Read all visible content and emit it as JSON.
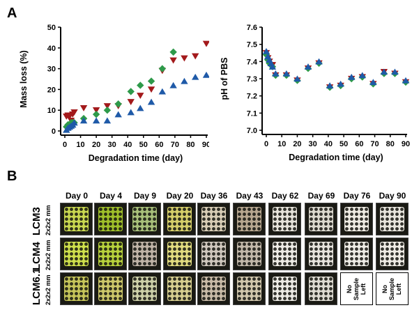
{
  "panels": {
    "a_label": "A",
    "b_label": "B"
  },
  "chart_data": [
    {
      "type": "scatter",
      "panel": "A-left",
      "xlabel": "Degradation time (day)",
      "ylabel": "Mass loss (%)",
      "xlim": [
        0,
        90
      ],
      "ylim": [
        0,
        50
      ],
      "x_ticks": [
        "0",
        "10",
        "20",
        "30",
        "40",
        "50",
        "60",
        "70",
        "80",
        "90"
      ],
      "y_ticks": [
        "0",
        "10",
        "20",
        "30",
        "40",
        "50"
      ],
      "series": [
        {
          "marker": "triangle-down",
          "color": "#a3191b",
          "x": [
            1,
            2,
            3,
            4,
            5,
            6,
            12,
            20,
            27,
            34,
            42,
            48,
            55,
            62,
            69,
            76,
            83,
            90
          ],
          "y": [
            7,
            7.5,
            7,
            5,
            8,
            9,
            11,
            10,
            12,
            12,
            14,
            17,
            20,
            29,
            34,
            35,
            36,
            42
          ]
        },
        {
          "marker": "diamond",
          "color": "#2e9a4a",
          "x": [
            1,
            2,
            3,
            4,
            5,
            6,
            12,
            20,
            27,
            34,
            42,
            48,
            55,
            62,
            69
          ],
          "y": [
            2,
            3,
            3,
            4,
            4,
            4,
            6,
            8,
            10,
            13,
            19,
            22,
            24,
            30,
            38
          ]
        },
        {
          "marker": "triangle-up",
          "color": "#1f5aa8",
          "x": [
            1,
            2,
            3,
            4,
            5,
            6,
            12,
            20,
            27,
            34,
            42,
            48,
            55,
            62,
            69,
            76,
            83,
            90
          ],
          "y": [
            0.5,
            1.5,
            2,
            2.5,
            3,
            4,
            5,
            5,
            5,
            8,
            9,
            11,
            14,
            19,
            22,
            24,
            26,
            27
          ]
        }
      ]
    },
    {
      "type": "scatter",
      "panel": "A-right",
      "xlabel": "Degradation time (day)",
      "ylabel": "pH of PBS",
      "xlim": [
        0,
        90
      ],
      "ylim": [
        7.0,
        7.6
      ],
      "x_ticks": [
        "0",
        "10",
        "20",
        "30",
        "40",
        "50",
        "60",
        "70",
        "80",
        "90"
      ],
      "y_ticks": [
        "7.0",
        "7.1",
        "7.2",
        "7.3",
        "7.4",
        "7.5",
        "7.6"
      ],
      "series": [
        {
          "marker": "triangle-down",
          "color": "#a3191b",
          "x": [
            0,
            1,
            2,
            3,
            4,
            6,
            13,
            20,
            27,
            34,
            41,
            48,
            55,
            62,
            69,
            76,
            83,
            90
          ],
          "y": [
            7.45,
            7.42,
            7.4,
            7.38,
            7.38,
            7.32,
            7.32,
            7.29,
            7.36,
            7.39,
            7.25,
            7.26,
            7.3,
            7.31,
            7.27,
            7.34,
            7.33,
            7.28
          ]
        },
        {
          "marker": "diamond",
          "color": "#2e9a4a",
          "x": [
            0,
            1,
            2,
            3,
            4,
            6,
            13,
            20,
            27,
            34,
            41,
            48,
            55,
            62,
            69,
            76,
            83,
            90
          ],
          "y": [
            7.44,
            7.41,
            7.39,
            7.38,
            7.37,
            7.32,
            7.32,
            7.29,
            7.36,
            7.39,
            7.25,
            7.26,
            7.3,
            7.31,
            7.27,
            7.33,
            7.33,
            7.28
          ]
        },
        {
          "marker": "triangle-up",
          "color": "#1f5aa8",
          "x": [
            0,
            1,
            2,
            3,
            4,
            6,
            13,
            20,
            27,
            34,
            41,
            48,
            55,
            62,
            69,
            76,
            83,
            90
          ],
          "y": [
            7.46,
            7.43,
            7.41,
            7.39,
            7.37,
            7.33,
            7.33,
            7.3,
            7.37,
            7.4,
            7.26,
            7.27,
            7.31,
            7.32,
            7.28,
            7.34,
            7.34,
            7.29
          ]
        }
      ]
    }
  ],
  "photo_grid": {
    "days": [
      "Day 0",
      "Day 4",
      "Day 9",
      "Day 20",
      "Day 36",
      "Day 43",
      "Day 62",
      "Day 69",
      "Day 76",
      "Day 90"
    ],
    "rows": [
      {
        "name": "LCM3",
        "size": "2x2x2 mm",
        "tile_colors": [
          "#c9d850",
          "#9fbf2a",
          "#a8c07a",
          "#d6cf6a",
          "#d8cdb6",
          "#b7a790",
          "#e6e3da",
          "#dcd9cf",
          "#efece4",
          "#e8e5dd"
        ]
      },
      {
        "name": "LCM4",
        "size": "2x2x2 mm",
        "tile_colors": [
          "#cfe04c",
          "#b8d23c",
          "#bfb3a6",
          "#e2dc80",
          "#cfc7bd",
          "#c2b8aa",
          "#eceae4",
          "#e6e3dc",
          "#efede6",
          "#eeebe4"
        ]
      },
      {
        "name": "LCM6.1",
        "size": "2x2x2 mm",
        "tile_colors": [
          "#c7c65a",
          "#cdc86a",
          "#cdd0a8",
          "#d7cf90",
          "#c9bba8",
          "#d1c7ad",
          "#eceae4",
          "#dedbd2",
          "",
          ""
        ]
      }
    ],
    "empty_label": "No\nSample\nLeft"
  }
}
